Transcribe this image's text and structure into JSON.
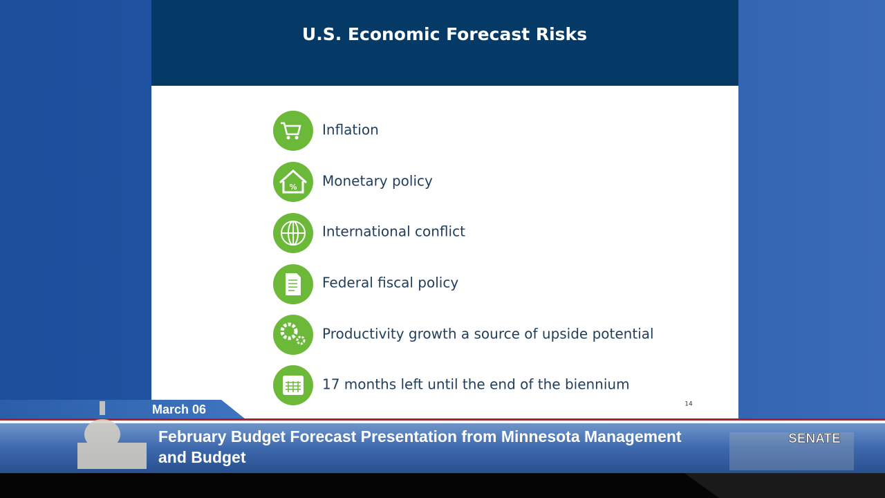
{
  "slide": {
    "title": "U.S. Economic Forecast Risks",
    "items": [
      "Inflation",
      "Monetary policy",
      "International conflict",
      "Federal fiscal policy",
      "Productivity growth a source of upside potential",
      "17 months left until the end of the biennium"
    ],
    "page_number": "14"
  },
  "lower_third": {
    "date": "March 06",
    "caption_lines": [
      "February Budget Forecast Presentation from Minnesota Management",
      "and Budget"
    ],
    "channel": "SENATE"
  }
}
